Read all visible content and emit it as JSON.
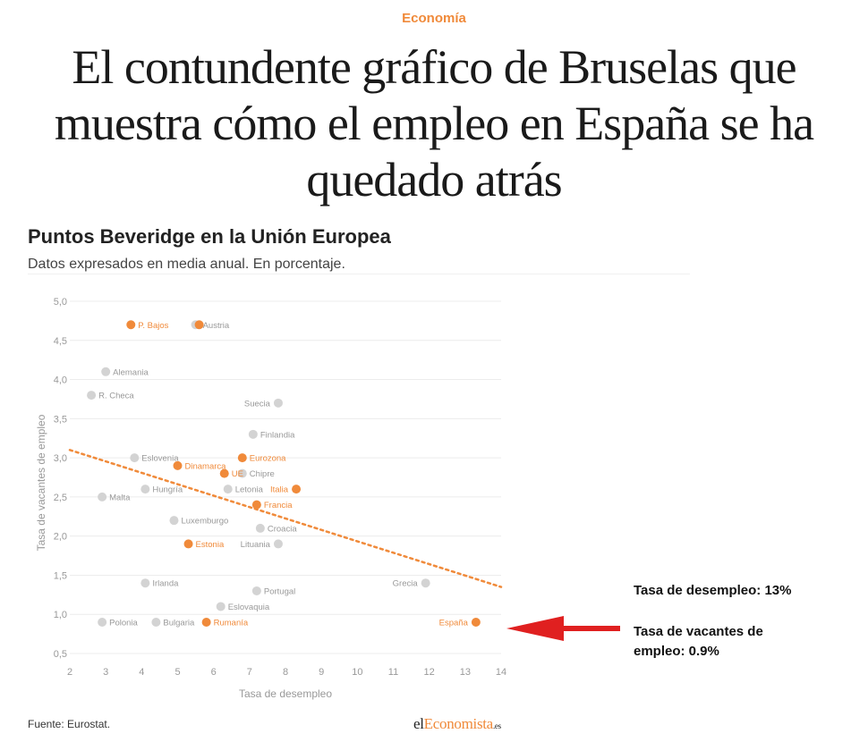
{
  "section": "Economía",
  "headline": "El contundente gráfico de Bruselas que muestra cómo el empleo en España se ha quedado atrás",
  "chart_title": "Puntos Beveridge en la Unión Europea",
  "chart_subtitle": "Datos expresados en media anual. En porcentaje.",
  "source": "Fuente: Eurostat.",
  "brand": {
    "part1": "el",
    "part2": "Economista",
    "part3": ".es"
  },
  "annotation": {
    "line1": "Tasa de desempleo: 13%",
    "line2": "Tasa de vacantes de empleo: 0.9%"
  },
  "colors": {
    "accent": "#f08a3a",
    "grey_point": "#d3d3d3",
    "arrow": "#e02020"
  },
  "chart_data": {
    "type": "scatter",
    "xlabel": "Tasa de desempleo",
    "ylabel": "Tasa de vacantes de empleo",
    "xlim": [
      2,
      14
    ],
    "ylim": [
      0.5,
      5.0
    ],
    "xticks": [
      "2",
      "3",
      "4",
      "5",
      "6",
      "7",
      "8",
      "9",
      "10",
      "11",
      "12",
      "13",
      "14"
    ],
    "yticks": [
      "0,5",
      "1,0",
      "1,5",
      "2,0",
      "2,5",
      "3,0",
      "3,5",
      "4,0",
      "4,5",
      "5,0"
    ],
    "grid": "horizontal",
    "points": [
      {
        "label": "P. Bajos",
        "x": 3.7,
        "y": 4.7,
        "highlight": true,
        "label_side": "right"
      },
      {
        "label": "Austria",
        "x": 5.5,
        "y": 4.7,
        "highlight": false,
        "label_side": "right"
      },
      {
        "label": "",
        "x": 5.6,
        "y": 4.7,
        "highlight": true,
        "label_side": "right"
      },
      {
        "label": "Alemania",
        "x": 3.0,
        "y": 4.1,
        "highlight": false,
        "label_side": "right"
      },
      {
        "label": "R. Checa",
        "x": 2.6,
        "y": 3.8,
        "highlight": false,
        "label_side": "right"
      },
      {
        "label": "Suecia",
        "x": 7.8,
        "y": 3.7,
        "highlight": false,
        "label_side": "left"
      },
      {
        "label": "Finlandia",
        "x": 7.1,
        "y": 3.3,
        "highlight": false,
        "label_side": "right"
      },
      {
        "label": "Eslovenia",
        "x": 3.8,
        "y": 3.0,
        "highlight": false,
        "label_side": "right"
      },
      {
        "label": "Eurozona",
        "x": 6.8,
        "y": 3.0,
        "highlight": true,
        "label_side": "right"
      },
      {
        "label": "Dinamarca",
        "x": 5.0,
        "y": 2.9,
        "highlight": true,
        "label_side": "right"
      },
      {
        "label": "UE",
        "x": 6.3,
        "y": 2.8,
        "highlight": true,
        "label_side": "right"
      },
      {
        "label": "Chipre",
        "x": 6.8,
        "y": 2.8,
        "highlight": false,
        "label_side": "right"
      },
      {
        "label": "Hungría",
        "x": 4.1,
        "y": 2.6,
        "highlight": false,
        "label_side": "right"
      },
      {
        "label": "Letonia",
        "x": 6.4,
        "y": 2.6,
        "highlight": false,
        "label_side": "right"
      },
      {
        "label": "Italia",
        "x": 8.3,
        "y": 2.6,
        "highlight": true,
        "label_side": "left"
      },
      {
        "label": "Malta",
        "x": 2.9,
        "y": 2.5,
        "highlight": false,
        "label_side": "right"
      },
      {
        "label": "Francia",
        "x": 7.2,
        "y": 2.4,
        "highlight": true,
        "label_side": "right"
      },
      {
        "label": "Luxemburgo",
        "x": 4.9,
        "y": 2.2,
        "highlight": false,
        "label_side": "right"
      },
      {
        "label": "Croacia",
        "x": 7.3,
        "y": 2.1,
        "highlight": false,
        "label_side": "right"
      },
      {
        "label": "Estonia",
        "x": 5.3,
        "y": 1.9,
        "highlight": true,
        "label_side": "right"
      },
      {
        "label": "Lituania",
        "x": 7.8,
        "y": 1.9,
        "highlight": false,
        "label_side": "left"
      },
      {
        "label": "Irlanda",
        "x": 4.1,
        "y": 1.4,
        "highlight": false,
        "label_side": "right"
      },
      {
        "label": "Grecia",
        "x": 11.9,
        "y": 1.4,
        "highlight": false,
        "label_side": "left"
      },
      {
        "label": "Portugal",
        "x": 7.2,
        "y": 1.3,
        "highlight": false,
        "label_side": "right"
      },
      {
        "label": "Eslovaquia",
        "x": 6.2,
        "y": 1.1,
        "highlight": false,
        "label_side": "right"
      },
      {
        "label": "Polonia",
        "x": 2.9,
        "y": 0.9,
        "highlight": false,
        "label_side": "right"
      },
      {
        "label": "Bulgaria",
        "x": 4.4,
        "y": 0.9,
        "highlight": false,
        "label_side": "right"
      },
      {
        "label": "Rumanía",
        "x": 5.8,
        "y": 0.9,
        "highlight": true,
        "label_side": "right"
      },
      {
        "label": "España",
        "x": 13.3,
        "y": 0.9,
        "highlight": true,
        "label_side": "left"
      }
    ],
    "trendline": {
      "x": [
        2,
        14
      ],
      "y": [
        3.1,
        1.35
      ],
      "style": "dotted"
    }
  }
}
